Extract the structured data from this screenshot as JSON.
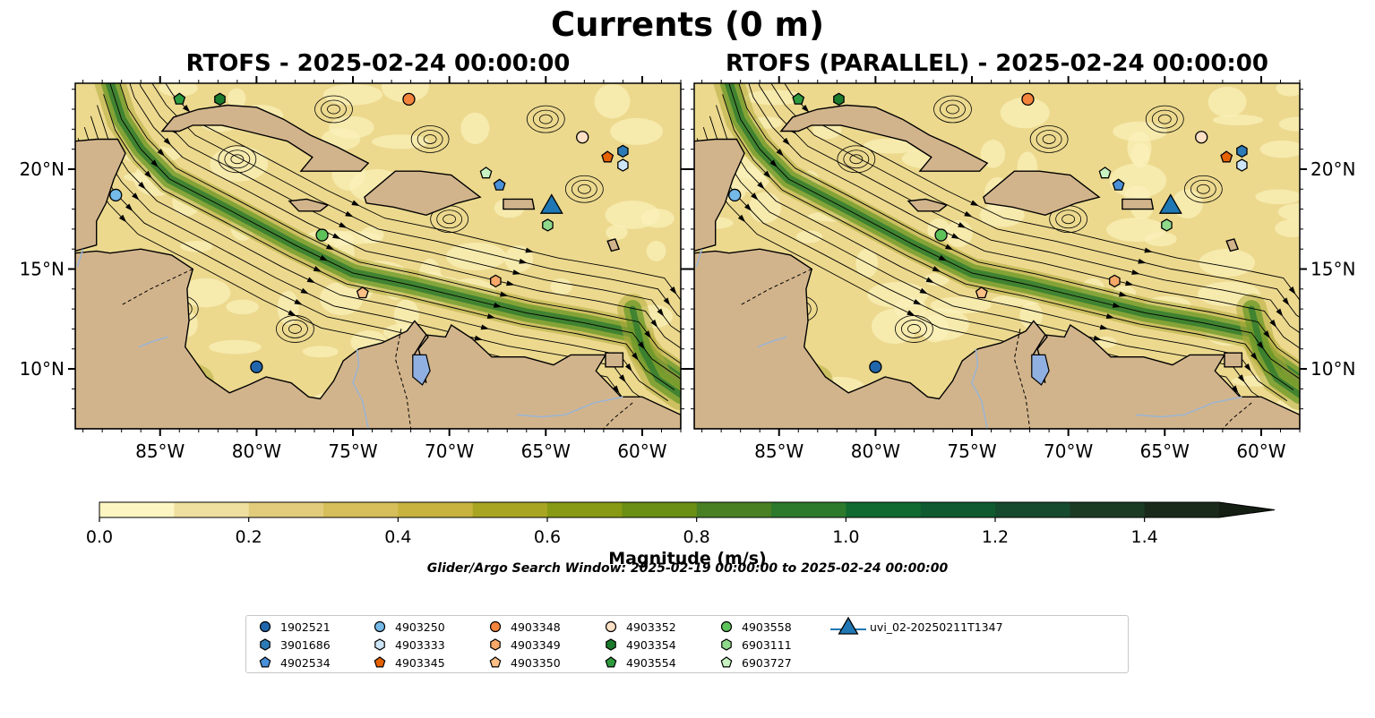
{
  "title": "Currents (0 m)",
  "panels": [
    {
      "title": "RTOFS - 2025-02-24 00:00:00"
    },
    {
      "title": "RTOFS (PARALLEL) - 2025-02-24 00:00:00"
    }
  ],
  "map_extent": {
    "lon": [
      -89.4,
      -58.0
    ],
    "lat": [
      7.0,
      24.3
    ]
  },
  "lon_ticks": [
    "85°W",
    "80°W",
    "75°W",
    "70°W",
    "65°W",
    "60°W"
  ],
  "lat_ticks": [
    "10°N",
    "15°N",
    "20°N"
  ],
  "colors": {
    "land": "#d2b48c",
    "coast": "#000000",
    "river": "#9db4d0",
    "lake": "#8fb0e0",
    "current_low": "#fdf6c3",
    "current_high": "#1a2a14"
  },
  "colorbar": {
    "label": "Magnitude (m/s)",
    "ticks": [
      "0.0",
      "0.2",
      "0.4",
      "0.6",
      "0.8",
      "1.0",
      "1.2",
      "1.4"
    ],
    "range": [
      0.0,
      1.5
    ],
    "colors": [
      "#fdf6c3",
      "#efe0a0",
      "#e2cc7c",
      "#d6bf5a",
      "#c8b33f",
      "#a8a523",
      "#889a13",
      "#6b8e15",
      "#4a8024",
      "#2d7a2d",
      "#116a2f",
      "#0f5a30",
      "#154a2e",
      "#1b3b25",
      "#1a2a1a"
    ],
    "extend": "max"
  },
  "search_window": "Glider/Argo Search Window: 2025-02-19 00:00:00 to 2025-02-24 00:00:00",
  "floats": [
    {
      "id": "1902521",
      "shape": "circle",
      "color": "#2166ac",
      "lon": -80.0,
      "lat": 10.1
    },
    {
      "id": "3901686",
      "shape": "hexagon",
      "color": "#2c7bb6",
      "lon": -61.0,
      "lat": 20.9
    },
    {
      "id": "4902534",
      "shape": "pentagon",
      "color": "#4a90d9",
      "lon": -67.4,
      "lat": 19.2
    },
    {
      "id": "4903250",
      "shape": "circle",
      "color": "#74b9e8",
      "lon": -87.3,
      "lat": 18.7
    },
    {
      "id": "4903333",
      "shape": "hexagon",
      "color": "#cde6f7",
      "lon": -61.0,
      "lat": 20.2
    },
    {
      "id": "4903345",
      "shape": "pentagon",
      "color": "#e66101",
      "lon": -61.8,
      "lat": 20.6
    },
    {
      "id": "4903348",
      "shape": "circle",
      "color": "#f4843c",
      "lon": -72.1,
      "lat": 23.5
    },
    {
      "id": "4903349",
      "shape": "hexagon",
      "color": "#f8a868",
      "lon": -67.6,
      "lat": 14.4
    },
    {
      "id": "4903350",
      "shape": "pentagon",
      "color": "#fcbf86",
      "lon": -74.5,
      "lat": 13.8
    },
    {
      "id": "4903352",
      "shape": "circle",
      "color": "#fde0c5",
      "lon": -63.1,
      "lat": 21.6
    },
    {
      "id": "4903354",
      "shape": "hexagon",
      "color": "#1b7a2c",
      "lon": -81.9,
      "lat": 23.5
    },
    {
      "id": "4903554",
      "shape": "pentagon",
      "color": "#2f9a3e",
      "lon": -84.0,
      "lat": 23.5
    },
    {
      "id": "4903558",
      "shape": "circle",
      "color": "#5ec25a",
      "lon": -76.6,
      "lat": 16.7
    },
    {
      "id": "6903111",
      "shape": "hexagon",
      "color": "#8fd98b",
      "lon": -64.9,
      "lat": 17.2
    },
    {
      "id": "6903727",
      "shape": "pentagon",
      "color": "#c8f2c2",
      "lon": -68.1,
      "lat": 19.8
    }
  ],
  "glider": {
    "id": "uvi_02-20250211T1347",
    "shape": "triangle",
    "color": "#1f78b4",
    "lon": -64.7,
    "lat": 18.1
  }
}
